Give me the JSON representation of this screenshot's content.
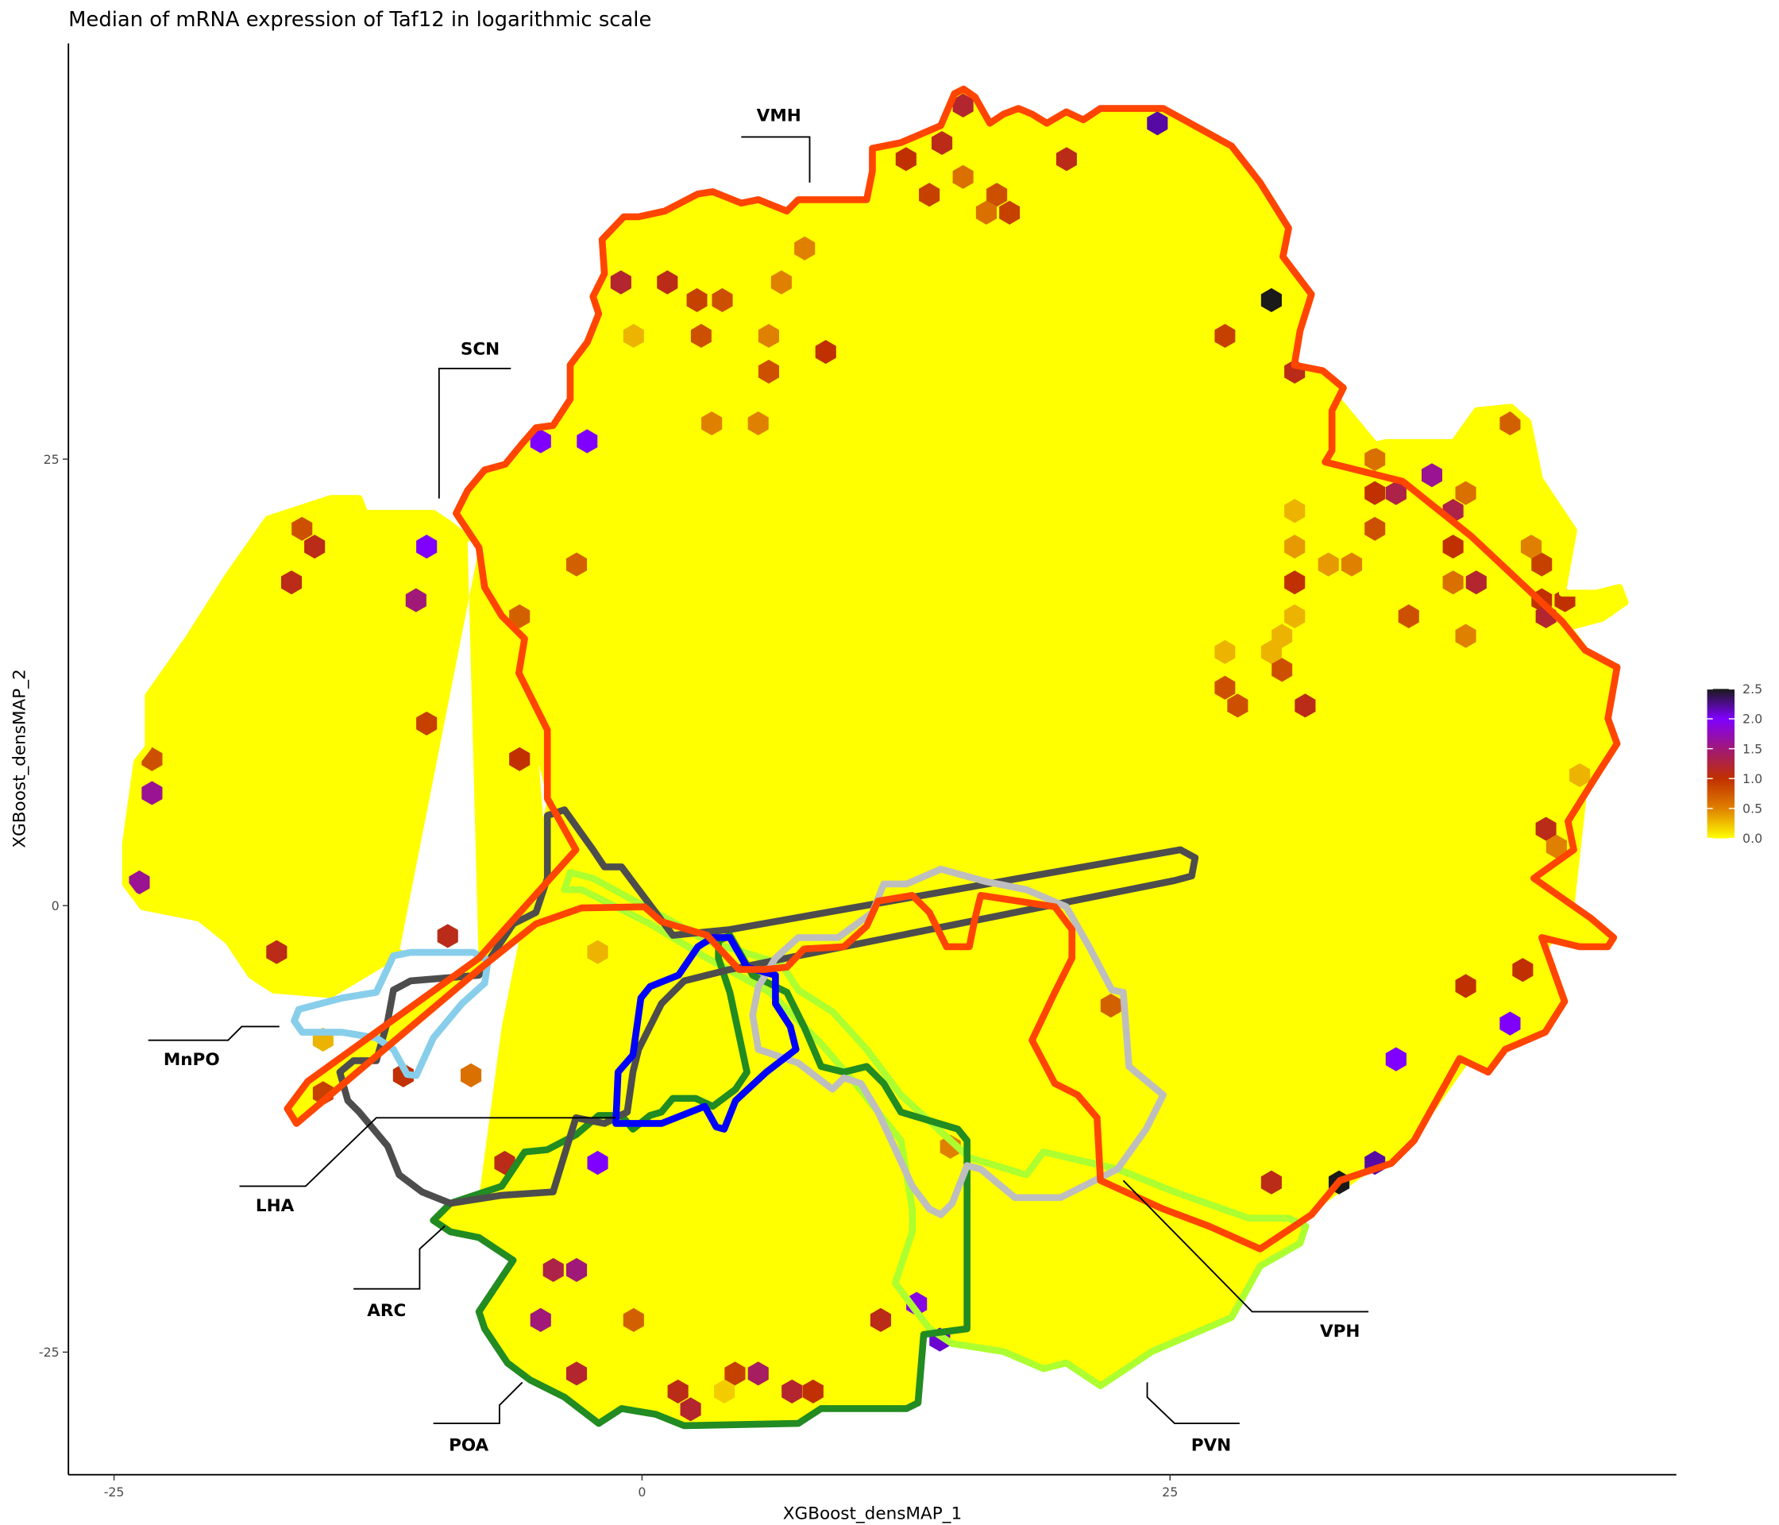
{
  "chart_data": {
    "type": "heatmap",
    "subtype": "hexbin",
    "title": "Median of mRNA expression of Taf12 in logarithmic scale",
    "xlabel": "XGBoost_densMAP_1",
    "ylabel": "XGBoost_densMAP_2",
    "x_ticks": [
      "-25",
      "0",
      "25"
    ],
    "y_ticks": [
      "-25",
      "0",
      "25"
    ],
    "xlim": [
      -27,
      49
    ],
    "ylim": [
      -32,
      48
    ],
    "grid": false,
    "legend": {
      "placement": "right",
      "ticks": [
        "0.0",
        "0.5",
        "1.0",
        "1.5",
        "2.0",
        "2.5"
      ],
      "range": [
        0,
        2.5
      ],
      "colors": [
        "#ffff00",
        "#e08000",
        "#c03000",
        "#a01878",
        "#8000ff",
        "#1a1a1a"
      ]
    },
    "background_value": 0.0,
    "background_color": "#ffff00",
    "regions": [
      {
        "name": "VMH",
        "color": "#ff4500"
      },
      {
        "name": "SCN",
        "color": "#ffff00"
      },
      {
        "name": "MnPO",
        "color": "#87ceeb"
      },
      {
        "name": "LHA",
        "color": "#4d4d4d"
      },
      {
        "name": "ARC",
        "color": "#228b22"
      },
      {
        "name": "POA",
        "color": "#228b22"
      },
      {
        "name": "PVN",
        "color": "#adff2f"
      },
      {
        "name": "VPH",
        "color": "#bebebe"
      }
    ],
    "hexes": [
      [
        15.2,
        44.8,
        1.2
      ],
      [
        14.2,
        42.7,
        1.1
      ],
      [
        12.5,
        41.8,
        1.0
      ],
      [
        20.1,
        41.8,
        1.1
      ],
      [
        24.4,
        43.8,
        2.2
      ],
      [
        15.2,
        40.8,
        0.6
      ],
      [
        13.6,
        39.8,
        0.9
      ],
      [
        16.8,
        39.8,
        0.8
      ],
      [
        16.3,
        38.8,
        0.6
      ],
      [
        17.4,
        38.8,
        0.9
      ],
      [
        7.7,
        36.8,
        0.5
      ],
      [
        -1.0,
        34.9,
        1.2
      ],
      [
        1.2,
        34.9,
        1.1
      ],
      [
        6.6,
        34.9,
        0.5
      ],
      [
        2.6,
        33.9,
        0.9
      ],
      [
        3.8,
        33.9,
        0.8
      ],
      [
        29.8,
        33.9,
        2.5
      ],
      [
        -0.4,
        31.9,
        0.3
      ],
      [
        2.8,
        31.9,
        0.8
      ],
      [
        6.0,
        31.9,
        0.5
      ],
      [
        8.7,
        31.0,
        1.0
      ],
      [
        27.6,
        31.9,
        0.9
      ],
      [
        6.0,
        29.9,
        0.8
      ],
      [
        30.9,
        29.9,
        1.1
      ],
      [
        3.3,
        27.0,
        0.5
      ],
      [
        5.5,
        27.0,
        0.5
      ],
      [
        41.1,
        27.0,
        0.7
      ],
      [
        -4.8,
        26.0,
        2.0
      ],
      [
        -2.6,
        26.0,
        2.0
      ],
      [
        34.7,
        25.0,
        0.6
      ],
      [
        37.4,
        24.1,
        1.6
      ],
      [
        34.7,
        23.1,
        1.0
      ],
      [
        35.7,
        23.1,
        1.3
      ],
      [
        39.0,
        23.1,
        0.6
      ],
      [
        38.4,
        22.1,
        1.3
      ],
      [
        30.9,
        22.1,
        0.3
      ],
      [
        -16.1,
        21.1,
        0.8
      ],
      [
        -15.5,
        20.1,
        1.1
      ],
      [
        -10.2,
        20.1,
        2.0
      ],
      [
        34.7,
        21.1,
        0.8
      ],
      [
        30.9,
        20.1,
        0.4
      ],
      [
        38.4,
        20.1,
        1.0
      ],
      [
        42.1,
        20.1,
        0.5
      ],
      [
        -3.1,
        19.1,
        0.7
      ],
      [
        32.5,
        19.1,
        0.4
      ],
      [
        33.6,
        19.1,
        0.5
      ],
      [
        42.6,
        19.1,
        0.9
      ],
      [
        -16.6,
        18.1,
        1.1
      ],
      [
        30.9,
        18.1,
        1.0
      ],
      [
        39.5,
        18.1,
        1.2
      ],
      [
        38.4,
        18.1,
        0.6
      ],
      [
        -10.7,
        17.1,
        1.5
      ],
      [
        42.6,
        17.1,
        1.0
      ],
      [
        43.7,
        17.1,
        1.0
      ],
      [
        -5.8,
        16.2,
        0.7
      ],
      [
        36.3,
        16.2,
        0.8
      ],
      [
        30.9,
        16.2,
        0.3
      ],
      [
        42.8,
        16.2,
        1.2
      ],
      [
        39.0,
        15.1,
        0.5
      ],
      [
        30.3,
        15.1,
        0.3
      ],
      [
        27.6,
        14.2,
        0.3
      ],
      [
        29.8,
        14.2,
        0.3
      ],
      [
        30.3,
        13.2,
        0.8
      ],
      [
        27.6,
        12.2,
        0.8
      ],
      [
        28.2,
        11.2,
        0.8
      ],
      [
        31.4,
        11.2,
        1.1
      ],
      [
        -10.2,
        10.2,
        0.9
      ],
      [
        -23.2,
        8.2,
        0.8
      ],
      [
        -5.8,
        8.2,
        1.0
      ],
      [
        -23.2,
        6.3,
        1.6
      ],
      [
        44.4,
        7.3,
        0.3
      ],
      [
        42.8,
        4.3,
        1.1
      ],
      [
        43.3,
        3.3,
        0.5
      ],
      [
        -23.8,
        1.3,
        1.6
      ],
      [
        -9.2,
        -1.7,
        1.1
      ],
      [
        -17.3,
        -2.6,
        1.1
      ],
      [
        41.7,
        -3.6,
        1.0
      ],
      [
        -2.1,
        -2.6,
        0.3
      ],
      [
        39.0,
        -4.5,
        1.0
      ],
      [
        22.2,
        -5.6,
        0.7
      ],
      [
        41.1,
        -6.6,
        2.0
      ],
      [
        -15.1,
        -7.5,
        0.3
      ],
      [
        35.7,
        -8.6,
        2.0
      ],
      [
        -8.1,
        -9.5,
        0.6
      ],
      [
        -11.3,
        -9.5,
        1.0
      ],
      [
        -15.1,
        -10.5,
        0.9
      ],
      [
        14.6,
        -13.5,
        0.5
      ],
      [
        -6.5,
        -14.4,
        1.1
      ],
      [
        -2.1,
        -14.4,
        2.0
      ],
      [
        29.8,
        -15.5,
        1.1
      ],
      [
        33.0,
        -15.5,
        2.5
      ],
      [
        34.7,
        -14.4,
        2.2
      ],
      [
        -4.2,
        -20.4,
        1.3
      ],
      [
        -3.1,
        -20.4,
        1.5
      ],
      [
        13.0,
        -22.3,
        1.9
      ],
      [
        -4.8,
        -23.2,
        1.5
      ],
      [
        -0.4,
        -23.2,
        0.7
      ],
      [
        11.3,
        -23.2,
        1.1
      ],
      [
        14.1,
        -24.3,
        2.1
      ],
      [
        -3.1,
        -26.2,
        1.2
      ],
      [
        4.4,
        -26.2,
        0.9
      ],
      [
        5.5,
        -26.2,
        1.4
      ],
      [
        1.7,
        -27.2,
        1.1
      ],
      [
        2.3,
        -28.2,
        1.2
      ],
      [
        7.1,
        -27.2,
        1.2
      ],
      [
        8.1,
        -27.2,
        1.0
      ],
      [
        3.9,
        -27.2,
        0.2
      ]
    ]
  }
}
